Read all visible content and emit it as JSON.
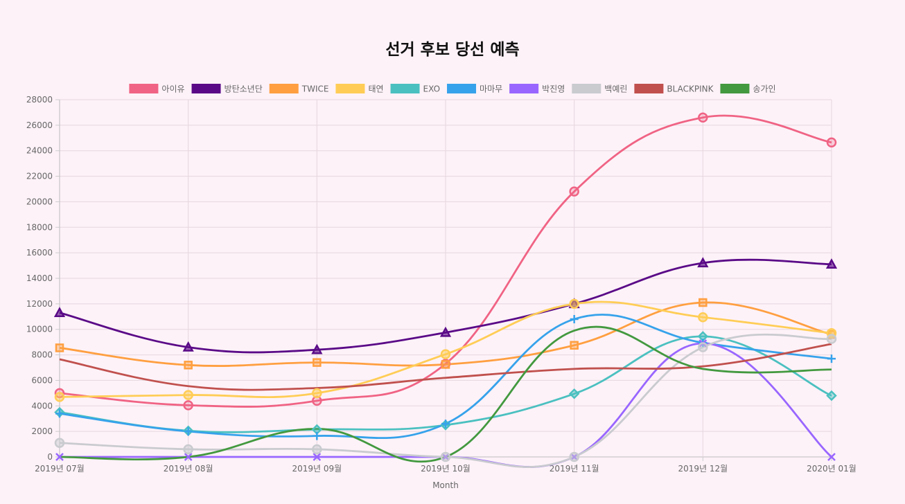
{
  "chart_data": {
    "type": "line",
    "title": "선거 후보 당선 예측",
    "xlabel": "Month",
    "ylabel": "",
    "ylim": [
      0,
      28000
    ],
    "yticks": [
      0,
      2000,
      4000,
      6000,
      8000,
      10000,
      12000,
      14000,
      16000,
      18000,
      20000,
      22000,
      24000,
      26000,
      28000
    ],
    "grid": true,
    "legend_position": "top",
    "categories": [
      "2019년 07월",
      "2019년 08월",
      "2019년 09월",
      "2019년 10월",
      "2019년 11월",
      "2019년 12월",
      "2020년 01월"
    ],
    "series": [
      {
        "name": "아이유",
        "color": "#f06384",
        "marker": "circle",
        "values": [
          5000,
          4050,
          4400,
          7300,
          20800,
          26600,
          24650
        ]
      },
      {
        "name": "방탄소년단",
        "color": "#5a0a87",
        "marker": "triangle",
        "values": [
          11300,
          8600,
          8400,
          9750,
          12000,
          15200,
          15100
        ]
      },
      {
        "name": "TWICE",
        "color": "#ff9f40",
        "marker": "square",
        "values": [
          8550,
          7200,
          7400,
          7250,
          8750,
          12100,
          9600
        ]
      },
      {
        "name": "태연",
        "color": "#ffcd56",
        "marker": "circle-filled",
        "values": [
          4700,
          4850,
          5000,
          8050,
          12000,
          10950,
          9700
        ]
      },
      {
        "name": "EXO",
        "color": "#4bc0c0",
        "marker": "diamond",
        "values": [
          3500,
          2050,
          2150,
          2500,
          4950,
          9450,
          4800
        ]
      },
      {
        "name": "마마무",
        "color": "#36a2eb",
        "marker": "cross",
        "values": [
          3400,
          2000,
          1650,
          2600,
          10800,
          8950,
          7700
        ]
      },
      {
        "name": "박진영",
        "color": "#9966ff",
        "marker": "x",
        "values": [
          0,
          0,
          0,
          0,
          0,
          8900,
          0
        ]
      },
      {
        "name": "백예린",
        "color": "#c9cbcf",
        "marker": "circle-filled",
        "values": [
          1100,
          600,
          600,
          0,
          0,
          8600,
          9250
        ]
      },
      {
        "name": "BLACKPINK",
        "color": "#c0504d",
        "marker": "none",
        "values": [
          7650,
          5550,
          5400,
          6200,
          6900,
          7100,
          8850
        ]
      },
      {
        "name": "송가인",
        "color": "#43993f",
        "marker": "none",
        "values": [
          0,
          0,
          2200,
          0,
          9900,
          6900,
          6850
        ]
      }
    ]
  }
}
